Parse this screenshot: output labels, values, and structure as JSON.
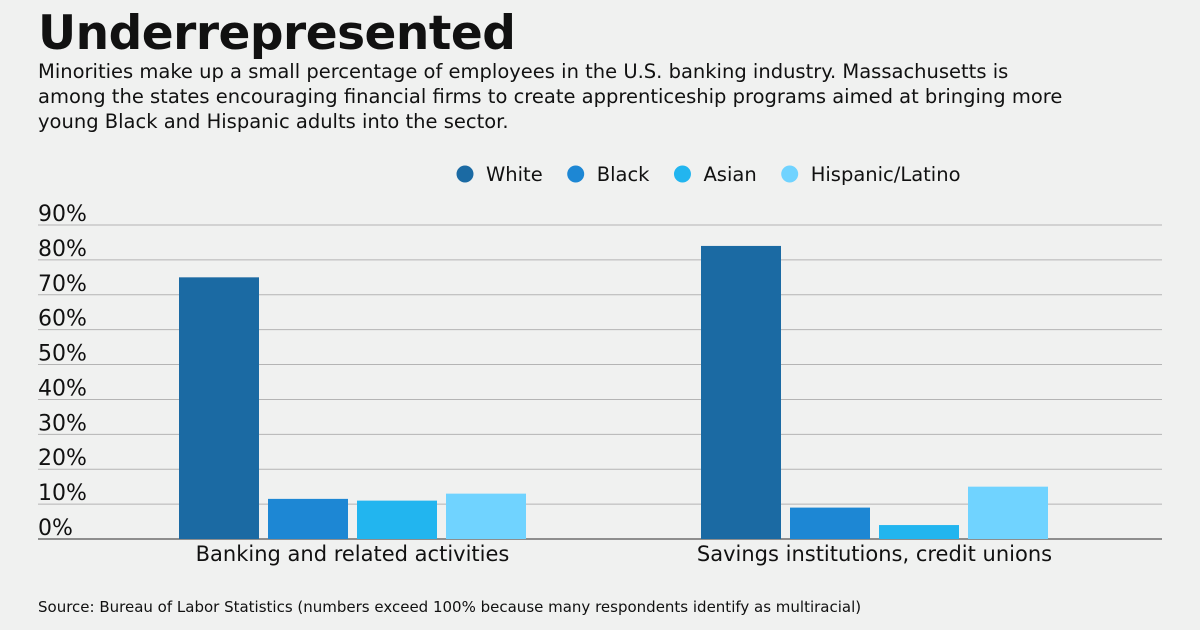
{
  "header": {
    "title": "Underrepresented",
    "subtitle_lines": [
      "Minorities make up a small percentage of employees in the U.S. banking industry. Massachusetts is",
      "among the states encouraging financial firms to create apprenticeship programs aimed at bringing more",
      "young Black and Hispanic adults into the sector."
    ]
  },
  "footer": {
    "source": "Source: Bureau of Labor Statistics (numbers exceed 100% because many respondents identify as multiracial)"
  },
  "chart_data": {
    "type": "bar",
    "categories": [
      "Banking and related activities",
      "Savings institutions, credit unions"
    ],
    "series": [
      {
        "name": "White",
        "color": "#1b6aa3",
        "values": [
          75,
          84
        ]
      },
      {
        "name": "Black",
        "color": "#1d87d4",
        "values": [
          11.5,
          9
        ]
      },
      {
        "name": "Asian",
        "color": "#22b5ef",
        "values": [
          11,
          4
        ]
      },
      {
        "name": "Hispanic/Latino",
        "color": "#70d3ff",
        "values": [
          13,
          15
        ]
      }
    ],
    "ylim": [
      0,
      90
    ],
    "yticks": [
      "0%",
      "10%",
      "20%",
      "30%",
      "40%",
      "50%",
      "60%",
      "70%",
      "80%",
      "90%"
    ],
    "grid": true,
    "legend_position": "top"
  }
}
